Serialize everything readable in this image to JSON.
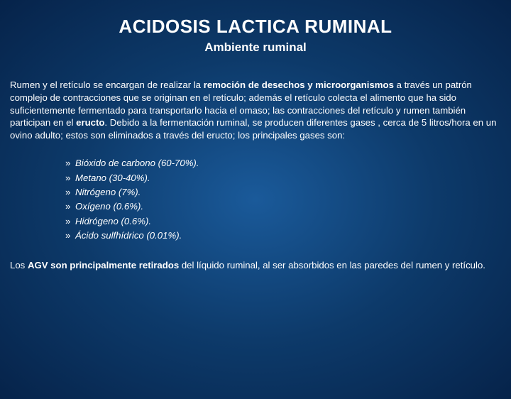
{
  "title": "ACIDOSIS LACTICA RUMINAL",
  "subtitle": "Ambiente ruminal",
  "para1_pre": "Rumen y el retículo se encargan de realizar la ",
  "para1_b1": "remoción de desechos y microorganismos",
  "para1_mid1": " a través un patrón complejo de contracciones que se originan en el retículo; además el retículo colecta el alimento que ha sido suficientemente fermentado para transportarlo hacia el omaso; las contracciones del retículo y rumen también participan en el ",
  "para1_b2": "eructo",
  "para1_post": ". Debido a la fermentación ruminal, se producen diferentes gases , cerca de 5 litros/hora en un ovino adulto; estos son eliminados a través del eructo; los principales gases son:",
  "gases": [
    "Bióxido de carbono (60-70%).",
    "Metano (30-40%).",
    "Nitrógeno (7%).",
    "Oxígeno (0.6%).",
    "Hidrógeno (0.6%).",
    "Ácido sulfhídrico (0.01%)."
  ],
  "para2_pre": "Los ",
  "para2_b1": "AGV son principalmente retirados",
  "para2_post": " del líquido ruminal, al ser absorbidos en las paredes del rumen y retículo.",
  "colors": {
    "bg_center": "#1a5a9a",
    "bg_edge": "#06234a",
    "text": "#ffffff"
  },
  "typography": {
    "title_size": 26,
    "subtitle_size": 17,
    "body_size": 13.2,
    "font_family": "Arial"
  }
}
